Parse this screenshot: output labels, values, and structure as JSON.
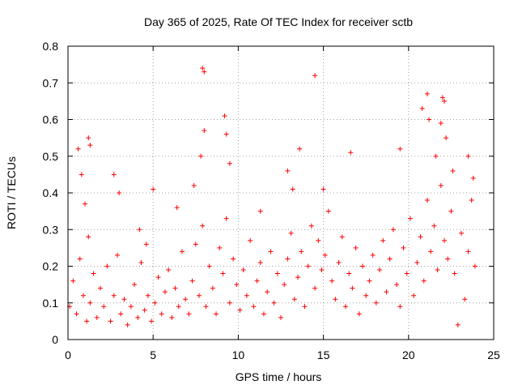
{
  "chart_data": {
    "type": "scatter",
    "title": "Day 365 of 2025, Rate Of TEC Index for receiver sctb",
    "xlabel": "GPS time / hours",
    "ylabel": "ROTI / TECUs",
    "xlim": [
      0,
      25
    ],
    "ylim": [
      0,
      0.8
    ],
    "xticks": [
      0,
      5,
      10,
      15,
      20,
      25
    ],
    "yticks": [
      0,
      0.1,
      0.2,
      0.3,
      0.4,
      0.5,
      0.6,
      0.7,
      0.8
    ],
    "xtick_labels": [
      "0",
      "5",
      "10",
      "15",
      "20",
      "25"
    ],
    "ytick_labels": [
      "0",
      "0.1",
      "0.2",
      "0.3",
      "0.4",
      "0.5",
      "0.6",
      "0.7",
      "0.8"
    ],
    "grid": true,
    "marker": "+",
    "color": "#ff0000",
    "series": [
      {
        "x": [
          0.1,
          0.3,
          0.5,
          0.7,
          0.9,
          1.1,
          1.2,
          1.3,
          1.5,
          1.7,
          1.9,
          2.1,
          2.3,
          2.5,
          2.7,
          2.9,
          3.1,
          3.3,
          3.5,
          3.7,
          3.9,
          4.1,
          4.3,
          4.5,
          4.7,
          4.9,
          5.1,
          5.3,
          5.5,
          5.7,
          5.9,
          6.1,
          6.3,
          6.5,
          6.7,
          6.9,
          7.1,
          7.3,
          7.5,
          7.7,
          7.9,
          8.1,
          8.3,
          8.5,
          8.7,
          8.9,
          9.1,
          9.3,
          9.5,
          9.7,
          9.9,
          10.1,
          10.3,
          10.5,
          10.7,
          10.9,
          11.1,
          11.3,
          11.5,
          11.7,
          11.9,
          12.1,
          12.3,
          12.5,
          12.7,
          12.9,
          13.1,
          13.3,
          13.5,
          13.7,
          13.9,
          14.1,
          14.3,
          14.5,
          14.7,
          14.9,
          15.1,
          15.3,
          15.5,
          15.7,
          15.9,
          16.1,
          16.3,
          16.5,
          16.7,
          16.9,
          17.1,
          17.3,
          17.5,
          17.7,
          17.9,
          18.1,
          18.3,
          18.5,
          18.7,
          18.9,
          19.1,
          19.3,
          19.5,
          19.7,
          19.9,
          20.1,
          20.3,
          20.5,
          20.7,
          20.9,
          21.1,
          21.3,
          21.5,
          21.7,
          21.9,
          22.1,
          22.3,
          22.5,
          22.7,
          22.9,
          23.1,
          23.3,
          23.5,
          23.7,
          23.9,
          0.6,
          0.8,
          1.0,
          1.2,
          1.3,
          2.7,
          3.0,
          4.2,
          4.6,
          5.0,
          6.4,
          7.4,
          7.8,
          7.9,
          8.0,
          8.0,
          9.2,
          9.3,
          9.5,
          11.3,
          12.9,
          13.2,
          13.6,
          14.5,
          15.0,
          16.6,
          19.5,
          20.8,
          21.1,
          21.2,
          21.6,
          21.9,
          22.0,
          22.1,
          22.2,
          22.6,
          23.5,
          23.8
        ],
        "y": [
          0.09,
          0.16,
          0.07,
          0.22,
          0.12,
          0.05,
          0.28,
          0.1,
          0.18,
          0.06,
          0.14,
          0.09,
          0.2,
          0.05,
          0.12,
          0.23,
          0.07,
          0.11,
          0.04,
          0.09,
          0.15,
          0.06,
          0.21,
          0.08,
          0.12,
          0.05,
          0.1,
          0.17,
          0.07,
          0.13,
          0.19,
          0.06,
          0.14,
          0.09,
          0.24,
          0.11,
          0.07,
          0.16,
          0.26,
          0.12,
          0.31,
          0.09,
          0.2,
          0.14,
          0.07,
          0.25,
          0.18,
          0.33,
          0.1,
          0.22,
          0.15,
          0.08,
          0.19,
          0.12,
          0.27,
          0.09,
          0.16,
          0.21,
          0.07,
          0.13,
          0.24,
          0.1,
          0.18,
          0.06,
          0.15,
          0.22,
          0.29,
          0.11,
          0.17,
          0.24,
          0.09,
          0.2,
          0.31,
          0.14,
          0.27,
          0.19,
          0.23,
          0.35,
          0.16,
          0.11,
          0.21,
          0.28,
          0.09,
          0.18,
          0.14,
          0.25,
          0.07,
          0.2,
          0.12,
          0.16,
          0.23,
          0.1,
          0.19,
          0.27,
          0.13,
          0.22,
          0.3,
          0.15,
          0.09,
          0.25,
          0.18,
          0.33,
          0.12,
          0.21,
          0.28,
          0.16,
          0.38,
          0.24,
          0.31,
          0.19,
          0.42,
          0.27,
          0.22,
          0.35,
          0.18,
          0.04,
          0.29,
          0.11,
          0.24,
          0.38,
          0.2,
          0.52,
          0.45,
          0.37,
          0.55,
          0.53,
          0.45,
          0.4,
          0.3,
          0.26,
          0.41,
          0.36,
          0.42,
          0.5,
          0.74,
          0.73,
          0.57,
          0.61,
          0.56,
          0.48,
          0.35,
          0.46,
          0.41,
          0.52,
          0.72,
          0.41,
          0.51,
          0.52,
          0.63,
          0.67,
          0.6,
          0.5,
          0.59,
          0.66,
          0.65,
          0.55,
          0.46,
          0.5,
          0.44
        ]
      }
    ]
  }
}
